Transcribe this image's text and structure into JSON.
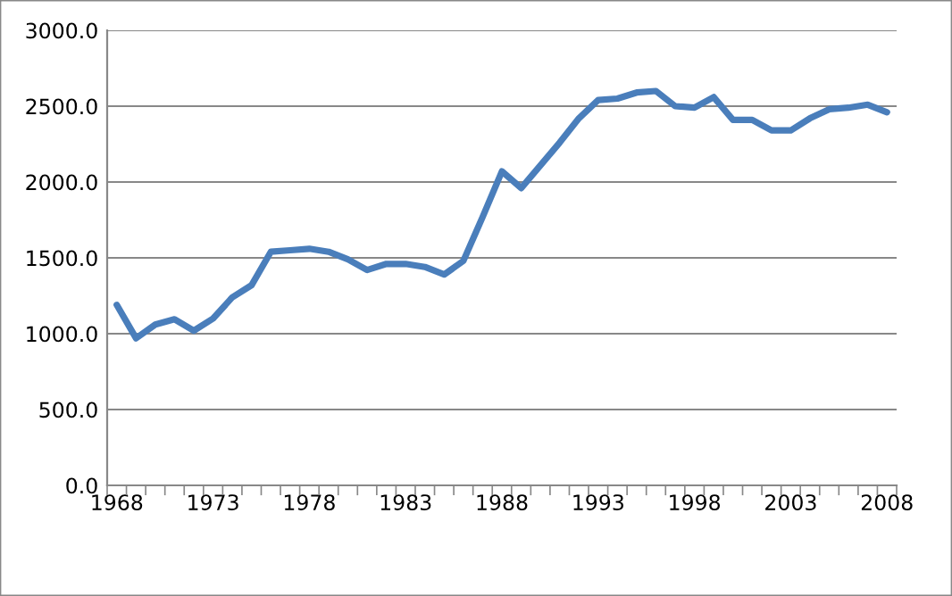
{
  "chart_data": {
    "type": "line",
    "categories": [
      "1968",
      null,
      null,
      null,
      null,
      "1973",
      null,
      null,
      null,
      null,
      "1978",
      null,
      null,
      null,
      null,
      "1983",
      null,
      null,
      null,
      null,
      "1988",
      null,
      null,
      null,
      null,
      "1993",
      null,
      null,
      null,
      null,
      "1998",
      null,
      null,
      null,
      null,
      "2003",
      null,
      null,
      null,
      null,
      "2008"
    ],
    "series": [
      {
        "color": "#4a7ebb",
        "values": [
          1190,
          970,
          1060,
          1095,
          1020,
          1100,
          1240,
          1320,
          1540,
          1550,
          1560,
          1540,
          1490,
          1420,
          1460,
          1460,
          1440,
          1390,
          1480,
          1770,
          2070,
          1960,
          2110,
          2260,
          2420,
          2540,
          2550,
          2590,
          2600,
          2500,
          2490,
          2560,
          2410,
          2410,
          2340,
          2340,
          2420,
          2480,
          2490,
          2510,
          2460
        ]
      }
    ],
    "ylim": [
      0,
      3000
    ],
    "yticks": [
      {
        "value": 0,
        "label": "0.0"
      },
      {
        "value": 500,
        "label": "500.0"
      },
      {
        "value": 1000,
        "label": "1000.0"
      },
      {
        "value": 1500,
        "label": "1500.0"
      },
      {
        "value": 2000,
        "label": "2000.0"
      },
      {
        "value": 2500,
        "label": "2500.0"
      },
      {
        "value": 3000,
        "label": "3000.0"
      }
    ],
    "grid": "y",
    "legend": false,
    "marker": "none",
    "line_style": "solid"
  }
}
